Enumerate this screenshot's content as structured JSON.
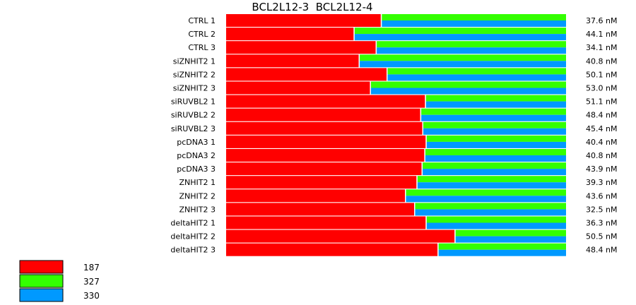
{
  "chart_data": {
    "type": "bar",
    "orientation": "horizontal",
    "stacked": "normalized",
    "title": "BCL2L12-3 BCL2L12-4",
    "title_parts": [
      "BCL2L12-3",
      "BCL2L12-4"
    ],
    "categories": [
      "CTRL 1",
      "CTRL 2",
      "CTRL 3",
      "siZNHIT2 1",
      "siZNHIT2 2",
      "siZNHIT2 3",
      "siRUVBL2 1",
      "siRUVBL2 2",
      "siRUVBL2 3",
      "pcDNA3 1",
      "pcDNA3 2",
      "pcDNA3 3",
      "ZNHIT2 1",
      "ZNHIT2 2",
      "ZNHIT2 3",
      "deltaHIT2 1",
      "deltaHIT2 2",
      "deltaHIT2 3"
    ],
    "series": [
      {
        "name": "187",
        "color": "#ff0000",
        "values": [
          0.455,
          0.375,
          0.44,
          0.39,
          0.472,
          0.423,
          0.585,
          0.571,
          0.577,
          0.587,
          0.583,
          0.575,
          0.56,
          0.526,
          0.553,
          0.587,
          0.672,
          0.622
        ]
      },
      {
        "name": "327",
        "color": "#33ff00",
        "values": [
          0.545,
          0.625,
          0.56,
          0.61,
          0.528,
          0.577,
          0.415,
          0.429,
          0.423,
          0.413,
          0.417,
          0.425,
          0.44,
          0.474,
          0.447,
          0.413,
          0.328,
          0.378
        ]
      },
      {
        "name": "330",
        "color": "#0099ff",
        "values": [
          0.545,
          0.625,
          0.56,
          0.61,
          0.528,
          0.577,
          0.415,
          0.429,
          0.423,
          0.413,
          0.417,
          0.425,
          0.44,
          0.474,
          0.447,
          0.413,
          0.328,
          0.378
        ]
      }
    ],
    "value_labels": [
      "37.6 nM",
      "44.1 nM",
      "34.1 nM",
      "40.8 nM",
      "50.1 nM",
      "53.0 nM",
      "51.1 nM",
      "48.4 nM",
      "45.4 nM",
      "40.4 nM",
      "40.8 nM",
      "43.9 nM",
      "39.3 nM",
      "43.6 nM",
      "32.5 nM",
      "36.3 nM",
      "50.5 nM",
      "48.4 nM"
    ],
    "xlim": [
      0,
      1
    ],
    "grid": false,
    "legend": "bottom-left"
  }
}
